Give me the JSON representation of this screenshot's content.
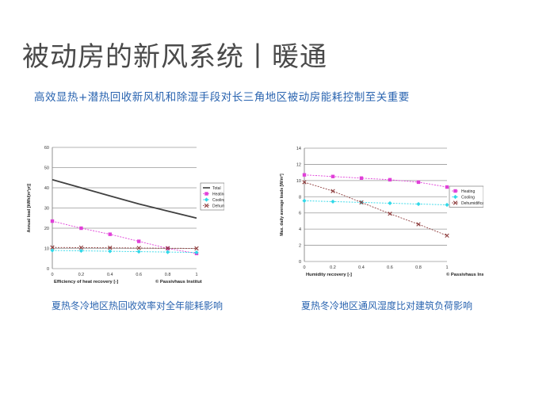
{
  "slide": {
    "title": "被动房的新风系统丨暖通",
    "subtitle": "高效显热+潜热回收新风机和除湿手段对长三角地区被动房能耗控制至关重要",
    "caption_left": "夏热冬冷地区热回收效率对全年能耗影响",
    "caption_right": "夏热冬冷地区通风湿度比对建筑负荷影响"
  },
  "chart_data": [
    {
      "type": "line",
      "xlabel": "Efficiency of heat recovery [-]",
      "ylabel": "Annual load [kWh/(m²yr)]",
      "x": [
        0,
        0.2,
        0.4,
        0.6,
        0.8,
        1
      ],
      "xticks": [
        "0",
        "0.2",
        "0.4",
        "0.6",
        "0.8",
        "1"
      ],
      "ylim": [
        0,
        60
      ],
      "yticks": [
        0,
        10,
        20,
        30,
        40,
        50,
        60
      ],
      "grid": true,
      "legend_position": "right",
      "credit": "© Passivhaus Institut",
      "series": [
        {
          "name": "Total",
          "color": "#404040",
          "marker": "none",
          "values": [
            44,
            40,
            36,
            32,
            28.5,
            25
          ]
        },
        {
          "name": "Heating",
          "color": "#e040d8",
          "marker": "square",
          "values": [
            23.5,
            20,
            17,
            13.5,
            10,
            7.5
          ]
        },
        {
          "name": "Cooling",
          "color": "#30d8e8",
          "marker": "diamond",
          "values": [
            9,
            8.8,
            8.6,
            8.4,
            8.2,
            8
          ]
        },
        {
          "name": "Dehumidification",
          "color": "#904040",
          "marker": "x",
          "values": [
            10.5,
            10.4,
            10.3,
            10.2,
            10.1,
            10
          ]
        }
      ]
    },
    {
      "type": "line",
      "xlabel": "Humidity recovery [-]",
      "ylabel": "Max. daily average loads [W/m²]",
      "x": [
        0,
        0.2,
        0.4,
        0.6,
        0.8,
        1
      ],
      "xticks": [
        "0",
        "0.2",
        "0.4",
        "0.6",
        "0.8",
        "1"
      ],
      "ylim": [
        0,
        14
      ],
      "yticks": [
        0,
        2,
        4,
        6,
        8,
        10,
        12,
        14
      ],
      "grid": true,
      "legend_position": "right",
      "credit": "© Passivhaus Institut",
      "series": [
        {
          "name": "Heating",
          "color": "#e040d8",
          "marker": "square",
          "values": [
            10.7,
            10.5,
            10.3,
            10.1,
            9.8,
            9.2
          ]
        },
        {
          "name": "Cooling",
          "color": "#30d8e8",
          "marker": "diamond",
          "values": [
            7.5,
            7.4,
            7.3,
            7.2,
            7.1,
            7
          ]
        },
        {
          "name": "Dehumidification",
          "color": "#904040",
          "marker": "x",
          "values": [
            9.8,
            8.7,
            7.3,
            5.9,
            4.6,
            3.2
          ]
        }
      ]
    }
  ]
}
